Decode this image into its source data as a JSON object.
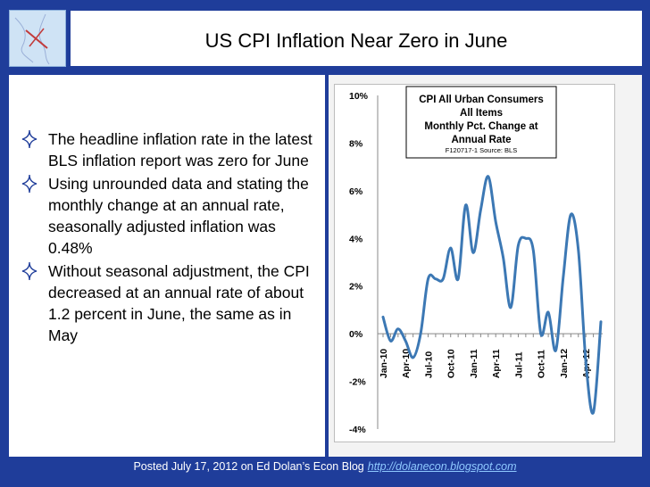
{
  "slide": {
    "title": "US CPI Inflation Near Zero in June",
    "bullets": [
      "The headline inflation rate in the latest BLS inflation report was zero for June",
      "Using unrounded data and stating the monthly change at an annual rate, seasonally adjusted inflation was 0.48%",
      "Without seasonal adjustment, the CPI decreased at an annual rate of about 1.2 percent in June, the same as in May"
    ],
    "footer_text": "Posted July 17, 2012 on Ed Dolan’s Econ Blog",
    "footer_link": "http://dolanecon.blogspot.com"
  },
  "colors": {
    "background": "#1f3d9a",
    "line": "#3c78b4",
    "footer_link": "#8ec8ff"
  },
  "chart_data": {
    "type": "line",
    "title_lines": [
      "CPI All Urban Consumers",
      "All Items",
      "Monthly Pct. Change at",
      "Annual Rate"
    ],
    "source": "F120717-1 Source: BLS",
    "ylim": [
      -4,
      10
    ],
    "y_ticks": [
      "10%",
      "8%",
      "6%",
      "4%",
      "2%",
      "0%",
      "-2%",
      "-4%"
    ],
    "x_tick_labels": [
      "Jan-10",
      "Apr-10",
      "Jul-10",
      "Oct-10",
      "Jan-11",
      "Apr-11",
      "Jul-11",
      "Oct-11",
      "Jan-12",
      "Apr-12"
    ],
    "grid": false,
    "series": [
      {
        "values": [
          0.7,
          -0.3,
          0.2,
          -0.3,
          -1.0,
          0.0,
          2.3,
          2.3,
          2.3,
          3.6,
          2.3,
          5.4,
          3.4,
          5.2,
          6.6,
          4.7,
          3.2,
          1.1,
          3.7,
          4.0,
          3.5,
          0.0,
          0.9,
          -0.7,
          2.4,
          5.0,
          3.5,
          -1.2,
          -3.3,
          0.5
        ]
      }
    ]
  }
}
